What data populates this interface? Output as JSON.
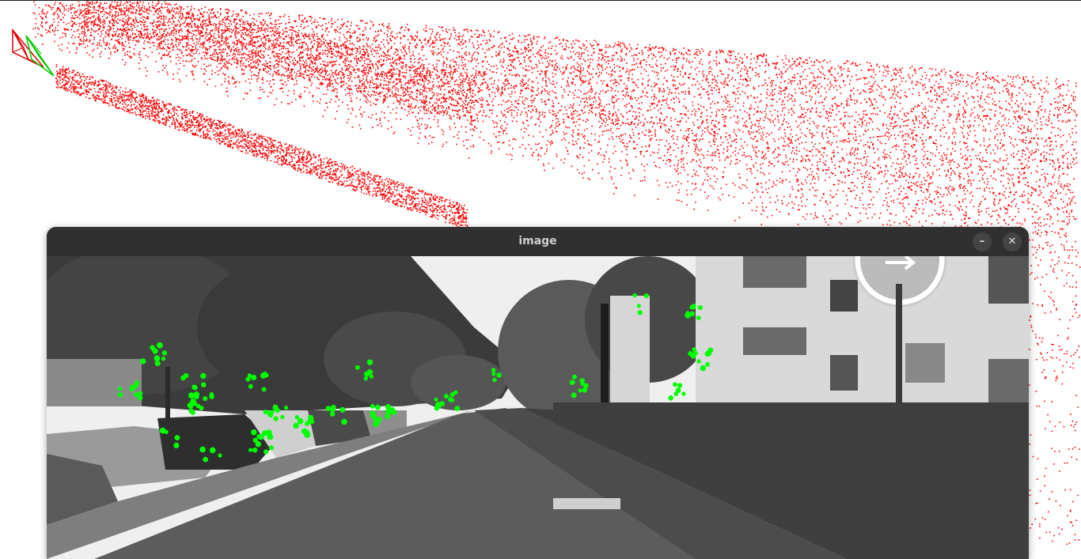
{
  "window": {
    "title": "image",
    "minimize_icon": "minimize-icon",
    "close_icon": "close-icon",
    "minimize_glyph": "–",
    "close_glyph": "✕"
  },
  "colors": {
    "point": "#ff0000",
    "camera_red": "#e00000",
    "camera_green": "#00cc00",
    "feature": "#00ff00",
    "sky": "#f2f2f2",
    "road": "#5a5a5a"
  }
}
